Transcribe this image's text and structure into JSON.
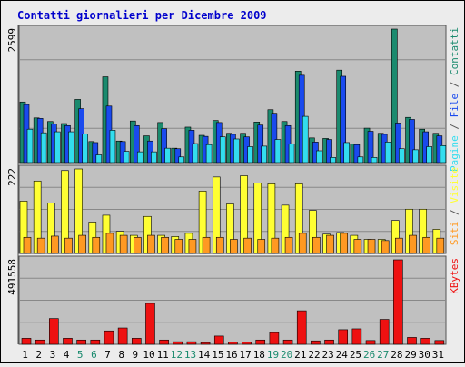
{
  "title": "Contatti giornalieri per Dicembre 2009",
  "colors": {
    "background": "#ececec",
    "plot": "#c0c0c0",
    "title": "#0000cc",
    "contatti": "#1a8a6e",
    "file": "#1a4aee",
    "pagine": "#33ddee",
    "visite": "#ffff33",
    "siti": "#ff9922",
    "kbytes": "#ee1111",
    "weekend_label": "#1a8a6e"
  },
  "chart_data": [
    {
      "type": "bar",
      "name": "contatti-file-pagine",
      "ymax_label": "2599",
      "legend_text": [
        "Pagine",
        " / ",
        "File",
        " / ",
        "Contatti"
      ],
      "categories": [
        "1",
        "2",
        "3",
        "4",
        "5",
        "6",
        "7",
        "8",
        "9",
        "10",
        "11",
        "12",
        "13",
        "14",
        "15",
        "16",
        "17",
        "18",
        "19",
        "20",
        "21",
        "22",
        "23",
        "24",
        "25",
        "26",
        "27",
        "28",
        "29",
        "30",
        "31"
      ],
      "series": [
        {
          "name": "Contatti",
          "values": [
            1180,
            870,
            800,
            760,
            1230,
            410,
            1670,
            420,
            810,
            520,
            780,
            280,
            690,
            530,
            820,
            570,
            570,
            790,
            1030,
            800,
            1780,
            480,
            470,
            1800,
            360,
            670,
            570,
            2599,
            880,
            650,
            570
          ]
        },
        {
          "name": "File",
          "values": [
            1130,
            860,
            750,
            720,
            1050,
            390,
            1100,
            410,
            720,
            420,
            660,
            270,
            630,
            510,
            780,
            550,
            500,
            730,
            960,
            720,
            1700,
            400,
            450,
            1680,
            350,
            610,
            550,
            770,
            840,
            600,
            520
          ]
        },
        {
          "name": "Pagine",
          "values": [
            650,
            580,
            600,
            600,
            560,
            150,
            630,
            220,
            210,
            210,
            280,
            110,
            370,
            350,
            500,
            460,
            310,
            320,
            450,
            360,
            900,
            230,
            100,
            390,
            110,
            100,
            400,
            270,
            250,
            310,
            330
          ]
        }
      ]
    },
    {
      "type": "bar",
      "name": "visite-siti",
      "ymax_label": "222",
      "legend_text": [
        "Siti",
        " / ",
        "Visite"
      ],
      "categories": [
        "1",
        "2",
        "3",
        "4",
        "5",
        "6",
        "7",
        "8",
        "9",
        "10",
        "11",
        "12",
        "13",
        "14",
        "15",
        "16",
        "17",
        "18",
        "19",
        "20",
        "21",
        "22",
        "23",
        "24",
        "25",
        "26",
        "27",
        "28",
        "29",
        "30",
        "31"
      ],
      "series": [
        {
          "name": "Visite",
          "values": [
            130,
            180,
            125,
            206,
            210,
            78,
            95,
            55,
            45,
            92,
            45,
            42,
            50,
            155,
            190,
            123,
            193,
            175,
            173,
            120,
            173,
            107,
            48,
            52,
            45,
            35,
            35,
            82,
            110,
            110,
            60
          ]
        },
        {
          "name": "Siti",
          "values": [
            40,
            38,
            43,
            38,
            45,
            40,
            50,
            45,
            40,
            45,
            40,
            35,
            35,
            40,
            40,
            35,
            38,
            35,
            38,
            40,
            50,
            40,
            45,
            50,
            35,
            35,
            32,
            38,
            45,
            40,
            38
          ]
        }
      ]
    },
    {
      "type": "bar",
      "name": "kbytes",
      "ymax_label": "491558",
      "legend_text": [
        "KBytes"
      ],
      "categories": [
        "1",
        "2",
        "3",
        "4",
        "5",
        "6",
        "7",
        "8",
        "9",
        "10",
        "11",
        "12",
        "13",
        "14",
        "15",
        "16",
        "17",
        "18",
        "19",
        "20",
        "21",
        "22",
        "23",
        "24",
        "25",
        "26",
        "27",
        "28",
        "29",
        "30",
        "31"
      ],
      "series": [
        {
          "name": "KBytes",
          "values": [
            35000,
            25000,
            150000,
            35000,
            25000,
            25000,
            78000,
            95000,
            35000,
            238000,
            25000,
            15000,
            15000,
            10000,
            48000,
            12000,
            12000,
            25000,
            68000,
            25000,
            195000,
            20000,
            25000,
            85000,
            90000,
            22000,
            145000,
            491558,
            40000,
            35000,
            22000
          ]
        }
      ]
    }
  ],
  "x_labels": [
    {
      "text": "1",
      "weekend": false
    },
    {
      "text": "2",
      "weekend": false
    },
    {
      "text": "3",
      "weekend": false
    },
    {
      "text": "4",
      "weekend": false
    },
    {
      "text": "5",
      "weekend": true
    },
    {
      "text": "6",
      "weekend": true
    },
    {
      "text": "7",
      "weekend": false
    },
    {
      "text": "8",
      "weekend": false
    },
    {
      "text": "9",
      "weekend": false
    },
    {
      "text": "10",
      "weekend": false
    },
    {
      "text": "11",
      "weekend": false
    },
    {
      "text": "12",
      "weekend": true
    },
    {
      "text": "13",
      "weekend": true
    },
    {
      "text": "14",
      "weekend": false
    },
    {
      "text": "15",
      "weekend": false
    },
    {
      "text": "16",
      "weekend": false
    },
    {
      "text": "17",
      "weekend": false
    },
    {
      "text": "18",
      "weekend": false
    },
    {
      "text": "19",
      "weekend": true
    },
    {
      "text": "20",
      "weekend": true
    },
    {
      "text": "21",
      "weekend": false
    },
    {
      "text": "22",
      "weekend": false
    },
    {
      "text": "23",
      "weekend": false
    },
    {
      "text": "24",
      "weekend": false
    },
    {
      "text": "25",
      "weekend": false
    },
    {
      "text": "26",
      "weekend": true
    },
    {
      "text": "27",
      "weekend": true
    },
    {
      "text": "28",
      "weekend": false
    },
    {
      "text": "29",
      "weekend": false
    },
    {
      "text": "30",
      "weekend": false
    },
    {
      "text": "31",
      "weekend": false
    }
  ]
}
